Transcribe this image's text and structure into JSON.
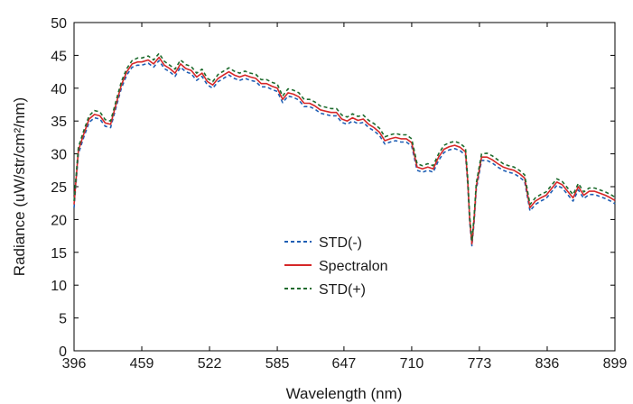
{
  "chart_data": {
    "type": "line",
    "xlabel": "Wavelength (nm)",
    "ylabel": "Radiance (uW/str/cm²/nm)",
    "xlim": [
      396,
      899
    ],
    "ylim": [
      0,
      50
    ],
    "xticks": [
      "396",
      "459",
      "522",
      "585",
      "647",
      "710",
      "773",
      "836",
      "899"
    ],
    "yticks": [
      "0",
      "5",
      "10",
      "15",
      "20",
      "25",
      "30",
      "35",
      "40",
      "45",
      "50"
    ],
    "grid": false,
    "legend_position": "lower-center",
    "x": [
      396,
      400,
      405,
      410,
      415,
      420,
      425,
      430,
      435,
      440,
      445,
      450,
      455,
      459,
      465,
      470,
      475,
      480,
      485,
      490,
      495,
      500,
      505,
      510,
      515,
      520,
      525,
      530,
      535,
      540,
      545,
      550,
      555,
      560,
      565,
      570,
      575,
      580,
      585,
      590,
      595,
      600,
      605,
      610,
      615,
      620,
      625,
      630,
      635,
      640,
      645,
      650,
      655,
      660,
      665,
      670,
      675,
      680,
      685,
      690,
      695,
      700,
      705,
      710,
      715,
      720,
      725,
      730,
      735,
      740,
      745,
      750,
      755,
      760,
      762,
      764,
      766,
      768,
      770,
      775,
      780,
      785,
      790,
      795,
      800,
      805,
      810,
      815,
      820,
      825,
      830,
      835,
      840,
      845,
      850,
      855,
      860,
      865,
      870,
      875,
      880,
      885,
      890,
      895,
      899
    ],
    "series": [
      {
        "name": "STD(-)",
        "color": "#1f5fb4",
        "dash": "dashed",
        "values": [
          21.8,
          30.0,
          32.5,
          34.8,
          35.5,
          35.3,
          34.2,
          34.0,
          37.0,
          40.0,
          42.0,
          43.2,
          43.5,
          43.5,
          43.8,
          43.2,
          44.2,
          43.0,
          42.5,
          41.8,
          43.2,
          42.5,
          42.2,
          41.2,
          41.8,
          40.5,
          40.0,
          41.0,
          41.5,
          42.0,
          41.5,
          41.2,
          41.5,
          41.2,
          41.0,
          40.2,
          40.2,
          39.8,
          39.5,
          37.8,
          38.8,
          38.6,
          38.2,
          37.2,
          37.2,
          36.8,
          36.2,
          36.0,
          35.8,
          35.8,
          34.8,
          34.5,
          35.0,
          34.6,
          34.8,
          34.0,
          33.5,
          32.8,
          31.5,
          31.8,
          32.0,
          31.8,
          31.8,
          31.2,
          27.5,
          27.2,
          27.5,
          27.2,
          29.0,
          30.2,
          30.6,
          30.8,
          30.5,
          29.8,
          25.5,
          19.5,
          16.0,
          19.5,
          24.5,
          29.0,
          29.0,
          28.6,
          28.0,
          27.5,
          27.2,
          27.0,
          26.5,
          25.8,
          21.3,
          22.3,
          22.8,
          23.2,
          24.2,
          25.2,
          24.8,
          23.8,
          22.8,
          24.5,
          23.2,
          23.8,
          23.8,
          23.5,
          23.2,
          22.8,
          22.4
        ]
      },
      {
        "name": "Spectralon",
        "color": "#d62728",
        "dash": "solid",
        "values": [
          22.3,
          30.5,
          33.0,
          35.3,
          36.0,
          35.8,
          34.7,
          34.5,
          37.5,
          40.5,
          42.5,
          43.7,
          44.0,
          44.0,
          44.3,
          43.7,
          44.7,
          43.5,
          43.0,
          42.3,
          43.7,
          43.0,
          42.7,
          41.7,
          42.3,
          41.0,
          40.5,
          41.5,
          42.0,
          42.5,
          42.0,
          41.7,
          42.0,
          41.7,
          41.5,
          40.7,
          40.7,
          40.3,
          40.0,
          38.3,
          39.3,
          39.1,
          38.7,
          37.7,
          37.7,
          37.3,
          36.7,
          36.5,
          36.3,
          36.3,
          35.3,
          35.0,
          35.5,
          35.1,
          35.3,
          34.5,
          34.0,
          33.3,
          32.0,
          32.3,
          32.5,
          32.3,
          32.3,
          31.7,
          28.0,
          27.7,
          28.0,
          27.7,
          29.5,
          30.7,
          31.1,
          31.3,
          31.0,
          30.3,
          26.0,
          20.0,
          16.3,
          20.0,
          25.0,
          29.5,
          29.5,
          29.1,
          28.5,
          28.0,
          27.7,
          27.5,
          27.0,
          26.3,
          21.8,
          22.8,
          23.3,
          23.7,
          24.7,
          25.7,
          25.3,
          24.3,
          23.3,
          25.0,
          23.7,
          24.3,
          24.3,
          24.0,
          23.7,
          23.3,
          22.9
        ]
      },
      {
        "name": "STD(+)",
        "color": "#1e6b2e",
        "dash": "dashed",
        "values": [
          22.8,
          31.0,
          33.5,
          35.8,
          36.6,
          36.4,
          35.2,
          35.0,
          38.0,
          41.0,
          43.0,
          44.2,
          44.6,
          44.6,
          44.9,
          44.3,
          45.3,
          44.1,
          43.5,
          42.9,
          44.3,
          43.6,
          43.3,
          42.3,
          42.9,
          41.5,
          41.0,
          42.1,
          42.6,
          43.1,
          42.6,
          42.3,
          42.6,
          42.3,
          42.1,
          41.3,
          41.3,
          40.9,
          40.6,
          38.8,
          39.9,
          39.7,
          39.3,
          38.3,
          38.3,
          37.9,
          37.3,
          37.1,
          36.9,
          36.9,
          35.9,
          35.6,
          36.1,
          35.7,
          35.9,
          35.1,
          34.6,
          33.9,
          32.6,
          32.9,
          33.1,
          32.9,
          32.9,
          32.3,
          28.5,
          28.2,
          28.5,
          28.2,
          30.0,
          31.3,
          31.7,
          31.9,
          31.6,
          30.9,
          26.5,
          20.4,
          16.7,
          20.4,
          25.5,
          30.0,
          30.1,
          29.7,
          29.1,
          28.5,
          28.2,
          28.0,
          27.5,
          26.8,
          22.3,
          23.3,
          23.8,
          24.2,
          25.2,
          26.2,
          25.8,
          24.8,
          23.8,
          25.5,
          24.2,
          24.8,
          24.8,
          24.5,
          24.2,
          23.8,
          23.4
        ]
      }
    ]
  }
}
